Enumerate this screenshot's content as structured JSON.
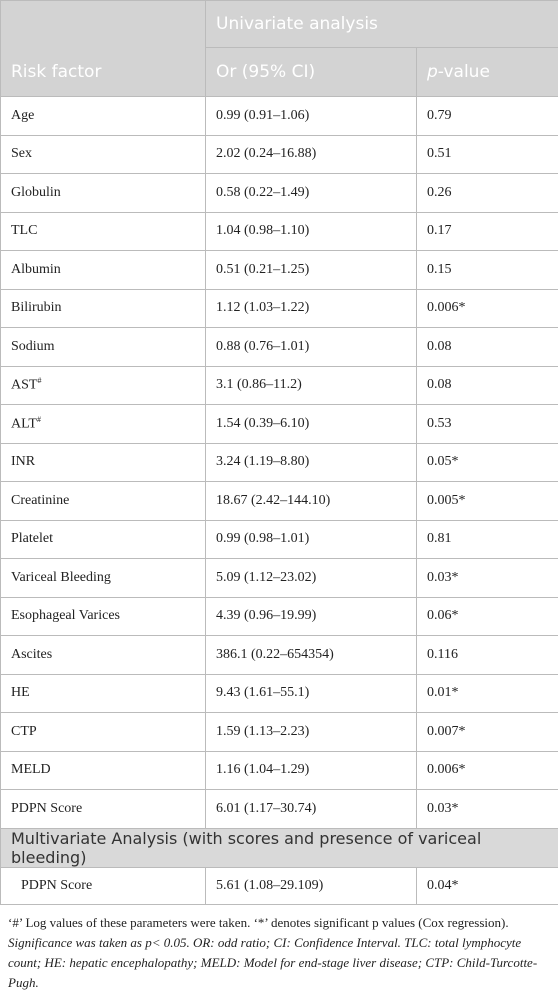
{
  "header": {
    "risk_factor": "Risk factor",
    "group": "Univariate analysis",
    "or": "Or (95% CI)",
    "p_value": [
      "p",
      "-value"
    ]
  },
  "table": {
    "rows": [
      [
        {
          "text": "Age"
        },
        "0.99 (0.91–1.06)",
        "0.79"
      ],
      [
        {
          "text": "Sex"
        },
        "2.02 (0.24–16.88)",
        "0.51"
      ],
      [
        {
          "text": "Globulin"
        },
        "0.58 (0.22–1.49)",
        "0.26"
      ],
      [
        {
          "text": "TLC"
        },
        "1.04 (0.98–1.10)",
        "0.17"
      ],
      [
        {
          "text": "Albumin"
        },
        "0.51 (0.21–1.25)",
        "0.15"
      ],
      [
        {
          "text": "Bilirubin"
        },
        "1.12 (1.03–1.22)",
        "0.006*"
      ],
      [
        {
          "text": "Sodium"
        },
        "0.88 (0.76–1.01)",
        "0.08"
      ],
      [
        {
          "text": "AST",
          "sup": "#"
        },
        "3.1 (0.86–11.2)",
        "0.08"
      ],
      [
        {
          "text": "ALT",
          "sup": "#"
        },
        "1.54 (0.39–6.10)",
        "0.53"
      ],
      [
        {
          "text": "INR"
        },
        "3.24 (1.19–8.80)",
        "0.05*"
      ],
      [
        {
          "text": "Creatinine"
        },
        "18.67 (2.42–144.10)",
        "0.005*"
      ],
      [
        {
          "text": "Platelet"
        },
        "0.99 (0.98–1.01)",
        "0.81"
      ],
      [
        {
          "text": "Variceal Bleeding"
        },
        "5.09 (1.12–23.02)",
        "0.03*"
      ],
      [
        {
          "text": "Esophageal Varices"
        },
        "4.39 (0.96–19.99)",
        "0.06*"
      ],
      [
        {
          "text": "Ascites"
        },
        "386.1 (0.22–654354)",
        "0.116"
      ],
      [
        {
          "text": "HE"
        },
        "9.43 (1.61–55.1)",
        "0.01*"
      ],
      [
        {
          "text": "CTP"
        },
        "1.59 (1.13–2.23)",
        "0.007*"
      ],
      [
        {
          "text": "MELD"
        },
        "1.16 (1.04–1.29)",
        "0.006*"
      ],
      [
        {
          "text": "PDPN Score"
        },
        "6.01 (1.17–30.74)",
        "0.03*"
      ]
    ]
  },
  "multivariate": {
    "title": "Multivariate Analysis (with scores and presence of variceal bleeding)",
    "rows": [
      [
        "PDPN Score",
        "5.61 (1.08–29.109)",
        "0.04*"
      ]
    ]
  },
  "footnote": [
    "‘#’ Log values of these parameters were taken. ‘*’ denotes significant p values (Cox regression).",
    "Significance was taken as p< 0.05. OR: odd ratio; CI: Confidence Interval. TLC: total lymphocyte count; HE: hepatic encephalopathy; MELD: Model for end-stage liver disease; CTP: Child-Turcotte-Pugh."
  ]
}
